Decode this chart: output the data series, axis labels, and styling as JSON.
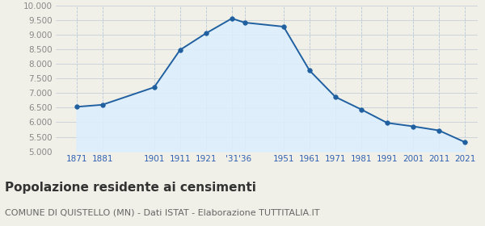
{
  "years": [
    1871,
    1881,
    1901,
    1911,
    1921,
    1931,
    1936,
    1951,
    1961,
    1971,
    1981,
    1991,
    2001,
    2011,
    2021
  ],
  "population": [
    6530,
    6600,
    7200,
    8480,
    9050,
    9560,
    9420,
    9280,
    7780,
    6870,
    6440,
    5980,
    5860,
    5720,
    5320
  ],
  "line_color": "#2060a0",
  "fill_color": "#ddeeff",
  "marker_color": "#2060a0",
  "background_color": "#f0f0e8",
  "plot_bg_color": "#f0f0e8",
  "grid_color_h": "#c8d0d8",
  "grid_color_v": "#b8c8d8",
  "ylim": [
    5000,
    10000
  ],
  "yticks": [
    5000,
    5500,
    6000,
    6500,
    7000,
    7500,
    8000,
    8500,
    9000,
    9500,
    10000
  ],
  "xlim_left": 1863,
  "xlim_right": 2026,
  "title": "Popolazione residente ai censimenti",
  "subtitle": "COMUNE DI QUISTELLO (MN) - Dati ISTAT - Elaborazione TUTTITALIA.IT",
  "title_fontsize": 11,
  "subtitle_fontsize": 8,
  "ytick_color": "#888888",
  "xtick_color": "#3060b0",
  "tick_fontsize": 7.5,
  "xtick_labels": [
    "1871",
    "1881",
    "1901",
    "1911",
    "1921",
    "'31",
    "'36",
    "1951",
    "1961",
    "1971",
    "1981",
    "1991",
    "2001",
    "2011",
    "2021"
  ]
}
